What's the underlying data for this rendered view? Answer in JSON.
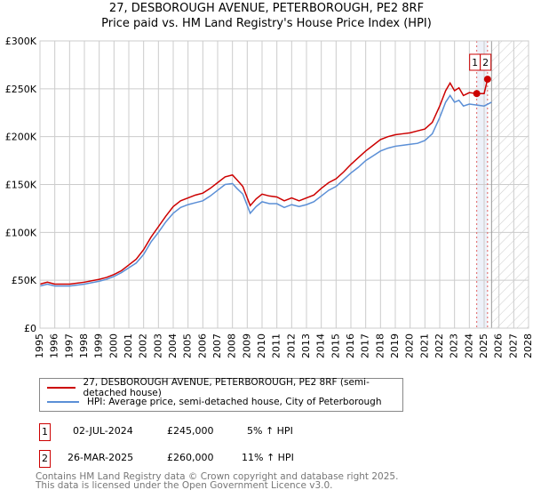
{
  "chart_data": {
    "type": "line",
    "title": "27, DESBOROUGH AVENUE, PETERBOROUGH, PE2 8RF",
    "subtitle": "Price paid vs. HM Land Registry's House Price Index (HPI)",
    "xlim": [
      1995,
      2028
    ],
    "ylim": [
      0,
      300000
    ],
    "x_ticks": [
      1995,
      1996,
      1997,
      1998,
      1999,
      2000,
      2001,
      2002,
      2003,
      2004,
      2005,
      2006,
      2007,
      2008,
      2009,
      2010,
      2011,
      2012,
      2013,
      2014,
      2015,
      2016,
      2017,
      2018,
      2019,
      2020,
      2021,
      2022,
      2023,
      2024,
      2025,
      2026,
      2027,
      2028
    ],
    "y_ticks": [
      {
        "v": 0,
        "label": "£0"
      },
      {
        "v": 50000,
        "label": "£50K"
      },
      {
        "v": 100000,
        "label": "£100K"
      },
      {
        "v": 150000,
        "label": "£150K"
      },
      {
        "v": 200000,
        "label": "£200K"
      },
      {
        "v": 250000,
        "label": "£250K"
      },
      {
        "v": 300000,
        "label": "£300K"
      }
    ],
    "grid": true,
    "forecast_start": 2025.5,
    "series": [
      {
        "name": "27, DESBOROUGH AVENUE, PETERBOROUGH, PE2 8RF (semi-detached house)",
        "color": "#cc0000",
        "x": [
          1995,
          1995.5,
          1996,
          1997,
          1998,
          1999,
          1999.5,
          2000,
          2000.5,
          2001,
          2001.5,
          2002,
          2002.5,
          2003,
          2003.5,
          2004,
          2004.5,
          2005,
          2005.5,
          2006,
          2006.5,
          2007,
          2007.5,
          2008,
          2008.3,
          2008.7,
          2009.2,
          2009.6,
          2010,
          2010.5,
          2011,
          2011.5,
          2012,
          2012.5,
          2013,
          2013.5,
          2014,
          2014.5,
          2015,
          2015.5,
          2016,
          2016.5,
          2017,
          2017.5,
          2018,
          2018.5,
          2019,
          2019.5,
          2020,
          2020.5,
          2021,
          2021.5,
          2022,
          2022.4,
          2022.7,
          2023,
          2023.3,
          2023.6,
          2024,
          2024.5,
          2025.0,
          2025.23
        ],
        "y": [
          46000,
          48000,
          46000,
          46000,
          48000,
          51000,
          53000,
          56000,
          60000,
          66000,
          72000,
          82000,
          95000,
          106000,
          117000,
          127000,
          133000,
          136000,
          139000,
          141000,
          146000,
          152000,
          158000,
          160000,
          155000,
          148000,
          128000,
          135000,
          140000,
          138000,
          137000,
          133000,
          136000,
          133000,
          136000,
          139000,
          146000,
          152000,
          156000,
          163000,
          171000,
          178000,
          185000,
          191000,
          197000,
          200000,
          202000,
          203000,
          204000,
          206000,
          208000,
          215000,
          232000,
          248000,
          256000,
          248000,
          251000,
          243000,
          246000,
          245000,
          245000,
          260000
        ]
      },
      {
        "name": "HPI: Average price, semi-detached house, City of Peterborough",
        "color": "#5b8fd6",
        "x": [
          1995,
          1995.5,
          1996,
          1997,
          1998,
          1999,
          1999.5,
          2000,
          2000.5,
          2001,
          2001.5,
          2002,
          2002.5,
          2003,
          2003.5,
          2004,
          2004.5,
          2005,
          2005.5,
          2006,
          2006.5,
          2007,
          2007.5,
          2008,
          2008.3,
          2008.7,
          2009.2,
          2009.6,
          2010,
          2010.5,
          2011,
          2011.5,
          2012,
          2012.5,
          2013,
          2013.5,
          2014,
          2014.5,
          2015,
          2015.5,
          2016,
          2016.5,
          2017,
          2017.5,
          2018,
          2018.5,
          2019,
          2019.5,
          2020,
          2020.5,
          2021,
          2021.5,
          2022,
          2022.4,
          2022.7,
          2023,
          2023.3,
          2023.6,
          2024,
          2024.5,
          2025.0,
          2025.5
        ],
        "y": [
          44000,
          46000,
          44000,
          44000,
          46000,
          49000,
          51000,
          54000,
          58000,
          63000,
          68000,
          77000,
          90000,
          100000,
          111000,
          120000,
          126000,
          129000,
          131000,
          133000,
          138000,
          144000,
          150000,
          151000,
          146000,
          140000,
          120000,
          127000,
          132000,
          130000,
          130000,
          126000,
          129000,
          127000,
          129000,
          132000,
          138000,
          144000,
          148000,
          155000,
          162000,
          168000,
          175000,
          180000,
          185000,
          188000,
          190000,
          191000,
          192000,
          193000,
          196000,
          203000,
          220000,
          236000,
          243000,
          236000,
          238000,
          232000,
          234000,
          233000,
          232000,
          236000
        ]
      }
    ],
    "sales": [
      {
        "label": "1",
        "x": 2024.5,
        "y": 245000,
        "date": "02-JUL-2024",
        "price": "£245,000",
        "hpi": "5% ↑ HPI"
      },
      {
        "label": "2",
        "x": 2025.23,
        "y": 260000,
        "date": "26-MAR-2025",
        "price": "£260,000",
        "hpi": "11% ↑ HPI"
      }
    ]
  },
  "footer": {
    "line1": "Contains HM Land Registry data © Crown copyright and database right 2025.",
    "line2": "This data is licensed under the Open Government Licence v3.0."
  }
}
